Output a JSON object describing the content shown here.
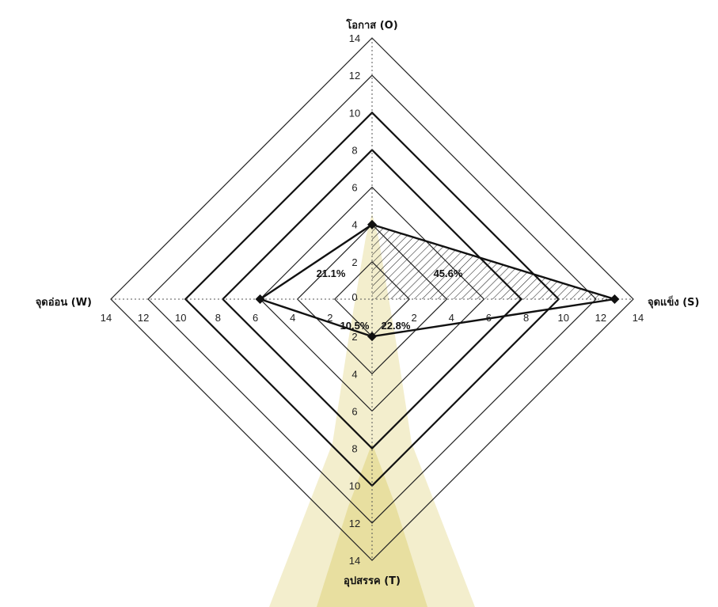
{
  "chart_data": {
    "type": "radar",
    "axes": [
      {
        "key": "O",
        "label": "โอกาส (O)"
      },
      {
        "key": "S",
        "label": "จุดแข็ง (S)"
      },
      {
        "key": "T",
        "label": "อุปสรรค (T)"
      },
      {
        "key": "W",
        "label": "จุดอ่อน (W)"
      }
    ],
    "rlim": [
      0,
      14
    ],
    "ticks": [
      0,
      2,
      4,
      6,
      8,
      10,
      12,
      14
    ],
    "bold_rings": [
      8,
      10
    ],
    "series": [
      {
        "values": {
          "O": 4,
          "S": 13,
          "T": 2,
          "W": 6
        }
      }
    ],
    "quadrant_labels": [
      {
        "between": [
          "O",
          "S"
        ],
        "text": "45.6%",
        "hatched": true
      },
      {
        "between": [
          "O",
          "W"
        ],
        "text": "21.1%",
        "hatched": false
      },
      {
        "between": [
          "W",
          "T"
        ],
        "text": "10.5%",
        "hatched": false
      },
      {
        "between": [
          "T",
          "S"
        ],
        "text": "22.8%",
        "hatched": false
      }
    ],
    "watermark_color": "#c9b21a"
  }
}
